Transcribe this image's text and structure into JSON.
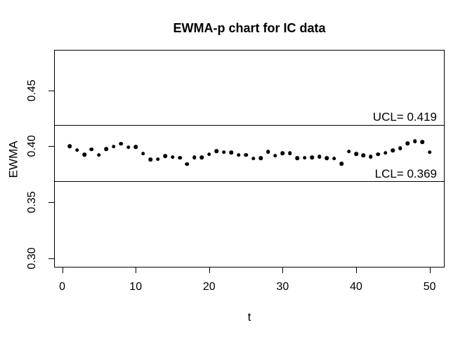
{
  "figure": {
    "background": "#ffffff",
    "foreground": "#000000"
  },
  "chart_data": {
    "type": "scatter",
    "title": "EWMA-p chart for IC data",
    "xlabel": "t",
    "ylabel": "EWMA",
    "grid": false,
    "legend": "none",
    "point_color": "#000000",
    "line_color": "#000000",
    "xlim": [
      -1.11,
      52.05
    ],
    "ylim": [
      0.2917,
      0.4861
    ],
    "x_ticks": [
      0,
      10,
      20,
      30,
      40,
      50
    ],
    "x_tick_labels": [
      "0",
      "10",
      "20",
      "30",
      "40",
      "50"
    ],
    "y_ticks": [
      0.3,
      0.35,
      0.4,
      0.45
    ],
    "y_tick_labels": [
      "0.30",
      "0.35",
      "0.40",
      "0.45"
    ],
    "ucl": {
      "label": "UCL= 0.419",
      "value": 0.419
    },
    "lcl": {
      "label": "LCL= 0.369",
      "value": 0.369
    },
    "x": [
      1,
      2,
      3,
      4,
      5,
      6,
      7,
      8,
      9,
      10,
      11,
      12,
      13,
      14,
      15,
      16,
      17,
      18,
      19,
      20,
      21,
      22,
      23,
      24,
      25,
      26,
      27,
      28,
      29,
      30,
      31,
      32,
      33,
      34,
      35,
      36,
      37,
      38,
      39,
      40,
      41,
      42,
      43,
      44,
      45,
      46,
      47,
      48,
      49,
      50
    ],
    "values": [
      0.4,
      0.3966,
      0.3925,
      0.3971,
      0.3921,
      0.3977,
      0.3996,
      0.4023,
      0.3992,
      0.3995,
      0.3935,
      0.388,
      0.3884,
      0.3913,
      0.3903,
      0.3897,
      0.384,
      0.39,
      0.39,
      0.3927,
      0.3958,
      0.3947,
      0.3944,
      0.3922,
      0.3922,
      0.3891,
      0.3895,
      0.3952,
      0.3916,
      0.3937,
      0.3937,
      0.3895,
      0.3897,
      0.39,
      0.3906,
      0.3895,
      0.3891,
      0.3843,
      0.3954,
      0.3933,
      0.392,
      0.3906,
      0.3927,
      0.3941,
      0.3962,
      0.3983,
      0.4025,
      0.4046,
      0.4038,
      0.3947
    ]
  }
}
